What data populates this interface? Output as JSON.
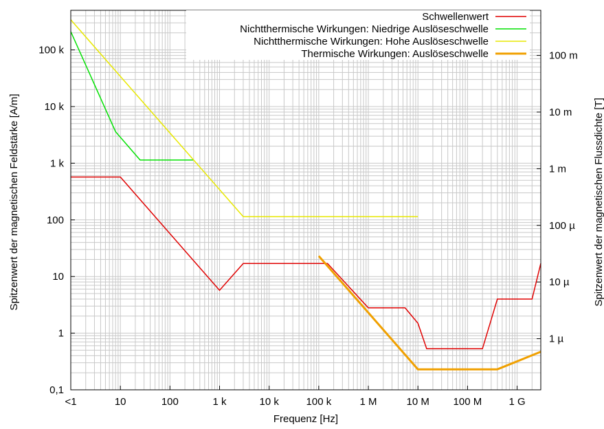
{
  "chart_data": {
    "type": "line",
    "x_scale": "log",
    "y_scale": "log",
    "grid": true,
    "legend_position": "top-right",
    "xlabel": "Frequenz [Hz]",
    "ylabel": "Spitzenwert der magnetischen Feldstärke [A/m]",
    "y2label": "Spitzenwert der magnetischen Flussdichte [T]",
    "xlim": [
      1,
      3000000000
    ],
    "ylim": [
      0.1,
      500000
    ],
    "x_ticks": [
      {
        "value": 1,
        "label": "<1"
      },
      {
        "value": 10,
        "label": "10"
      },
      {
        "value": 100,
        "label": "100"
      },
      {
        "value": 1000,
        "label": "1 k"
      },
      {
        "value": 10000,
        "label": "10 k"
      },
      {
        "value": 100000,
        "label": "100 k"
      },
      {
        "value": 1000000,
        "label": "1 M"
      },
      {
        "value": 10000000,
        "label": "10 M"
      },
      {
        "value": 100000000,
        "label": "100 M"
      },
      {
        "value": 1000000000,
        "label": "1 G"
      }
    ],
    "y_ticks": [
      {
        "value": 0.1,
        "label": "0,1"
      },
      {
        "value": 1,
        "label": "1"
      },
      {
        "value": 10,
        "label": "10"
      },
      {
        "value": 100,
        "label": "100"
      },
      {
        "value": 1000,
        "label": "1 k"
      },
      {
        "value": 10000,
        "label": "10 k"
      },
      {
        "value": 100000,
        "label": "100 k"
      }
    ],
    "y2_ticks": [
      {
        "value": 0.8,
        "label": "1 µ"
      },
      {
        "value": 8,
        "label": "10 µ"
      },
      {
        "value": 80,
        "label": "100 µ"
      },
      {
        "value": 800,
        "label": "1 m"
      },
      {
        "value": 8000,
        "label": "10 m"
      },
      {
        "value": 80000,
        "label": "100 m"
      }
    ],
    "series": [
      {
        "name": "Schwellenwert",
        "color": "#e00000",
        "width": 1.5,
        "points": [
          [
            1,
            570
          ],
          [
            10,
            570
          ],
          [
            1000,
            5.7
          ],
          [
            3000,
            17
          ],
          [
            150000,
            17
          ],
          [
            1000000,
            2.8
          ],
          [
            5500000,
            2.8
          ],
          [
            10000000,
            1.5
          ],
          [
            15000000,
            0.53
          ],
          [
            200000000,
            0.53
          ],
          [
            400000000,
            4
          ],
          [
            2000000000,
            4
          ],
          [
            3000000000,
            17
          ]
        ]
      },
      {
        "name": "Nichtthermische Wirkungen: Niedrige Auslöseschwelle",
        "color": "#00e000",
        "width": 1.5,
        "points": [
          [
            1,
            210000
          ],
          [
            8,
            3600
          ],
          [
            25,
            1140
          ],
          [
            300,
            1140
          ]
        ]
      },
      {
        "name": "Nichtthermische Wirkungen: Hohe Auslöseschwelle",
        "color": "#e8e800",
        "width": 1.5,
        "points": [
          [
            1,
            340000
          ],
          [
            3000,
            114
          ],
          [
            10000000,
            114
          ]
        ]
      },
      {
        "name": "Thermische Wirkungen: Auslöseschwelle",
        "color": "#f0a000",
        "width": 3,
        "points": [
          [
            100000,
            23
          ],
          [
            10000000,
            0.23
          ],
          [
            400000000,
            0.23
          ],
          [
            3000000000,
            0.47
          ]
        ]
      }
    ]
  }
}
